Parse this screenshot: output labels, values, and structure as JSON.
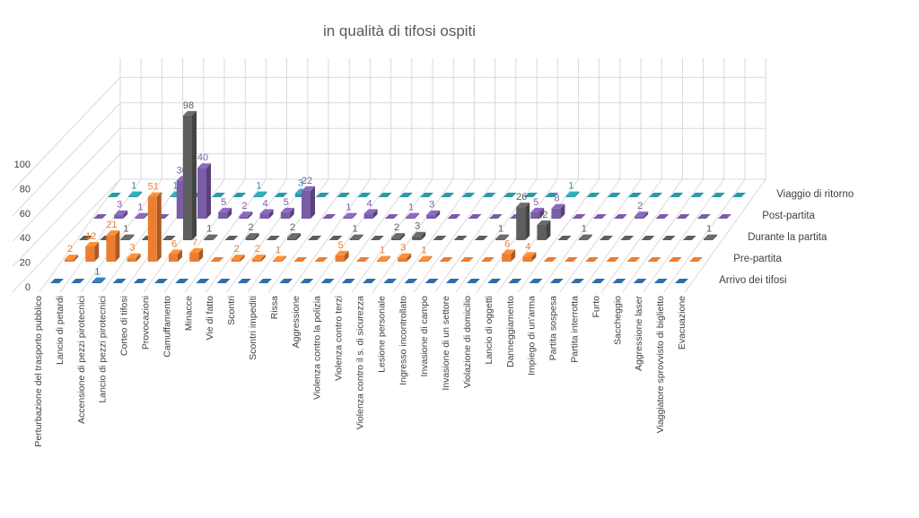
{
  "chart_data": {
    "type": "bar",
    "variant": "3d-column",
    "title": "in qualità di tifosi ospiti",
    "xlabel": "",
    "ylabel": "",
    "ylim": [
      0,
      100
    ],
    "yticks": [
      0,
      20,
      40,
      60,
      80,
      100
    ],
    "grid": true,
    "legend_position": "right",
    "categories": [
      "Perturbazione del trasporto pubblico",
      "Lancio di petardi",
      "Accensione di pezzi pirotecnici",
      "Lancio di pezzi pirotecnici",
      "Corteo di tifosi",
      "Provocazioni",
      "Camuffamento",
      "Minacce",
      "Vie di fatto",
      "Scontri",
      "Scontri impediti",
      "Rissa",
      "Aggressione",
      "Violenza contro la polizia",
      "Violenza contro terzi",
      "Violenza contro il s. di sicurezza",
      "Lesione personale",
      "Ingresso incontrollato",
      "Invasione di campo",
      "Invasione di un settore",
      "Violazione di domicilio",
      "Lancio di oggetti",
      "Danneggiamento",
      "Impiego di un'arma",
      "Partita sospesa",
      "Partita interrotta",
      "Furto",
      "Saccheggio",
      "Aggressione laser",
      "Viaggiatore sprovvisto di biglietto",
      "Evacuazione"
    ],
    "series": [
      {
        "name": "Arrivo dei tifosi",
        "color": "#2f6ea8",
        "values": [
          0,
          0,
          1,
          0,
          0,
          0,
          0,
          0,
          0,
          0,
          0,
          0,
          0,
          0,
          0,
          0,
          0,
          0,
          0,
          0,
          0,
          0,
          0,
          0,
          0,
          0,
          0,
          0,
          0,
          0,
          0
        ]
      },
      {
        "name": "Pre-partita",
        "color": "#ed7d31",
        "values": [
          2,
          12,
          21,
          3,
          51,
          6,
          7,
          0,
          2,
          2,
          1,
          0,
          0,
          5,
          0,
          1,
          3,
          1,
          0,
          0,
          0,
          6,
          4,
          0,
          0,
          0,
          0,
          0,
          0,
          0,
          0
        ]
      },
      {
        "name": "Durante la partita",
        "color": "#5e5e5e",
        "values": [
          0,
          0,
          1,
          0,
          0,
          98,
          1,
          0,
          2,
          0,
          2,
          0,
          0,
          1,
          0,
          2,
          3,
          0,
          0,
          0,
          1,
          26,
          12,
          0,
          1,
          0,
          0,
          0,
          0,
          0,
          1
        ]
      },
      {
        "name": "Post-partita",
        "color": "#7b5ca8",
        "values": [
          0,
          3,
          1,
          0,
          30,
          40,
          5,
          2,
          4,
          5,
          22,
          0,
          1,
          4,
          0,
          1,
          3,
          0,
          0,
          0,
          0,
          5,
          8,
          0,
          0,
          0,
          2,
          0,
          0,
          0,
          0
        ]
      },
      {
        "name": "Viaggio di ritorno",
        "color": "#2a9aa8",
        "values": [
          0,
          1,
          0,
          1,
          0,
          0,
          0,
          1,
          0,
          3,
          0,
          0,
          0,
          0,
          0,
          0,
          0,
          0,
          0,
          0,
          0,
          0,
          1,
          0,
          0,
          0,
          0,
          0,
          0,
          0,
          0
        ]
      }
    ]
  }
}
